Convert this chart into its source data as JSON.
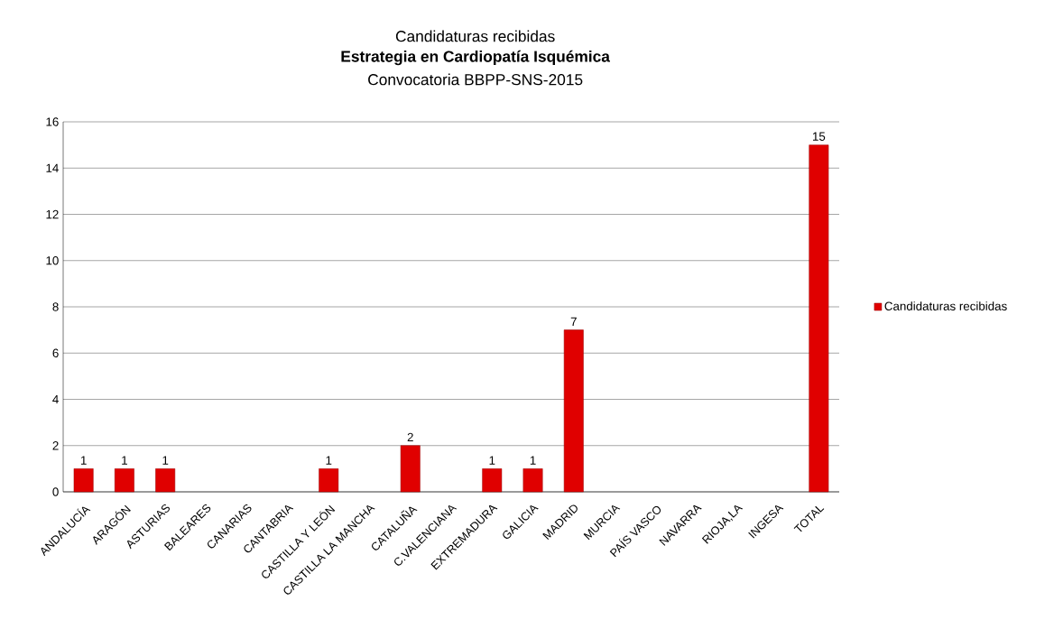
{
  "chart_data": {
    "type": "bar",
    "title": "Candidaturas recibidas",
    "subtitle": "**Estrategia en Cardiopatía Isquémica**",
    "annotations": [
      "Convocatoria BBPP-SNS-2015"
    ],
    "categories": [
      "ANDALUCÍA",
      "ARAGÓN",
      "ASTURIAS",
      "BALEARES",
      "CANARIAS",
      "CANTABRIA",
      "CASTILLA Y LEÓN",
      "CASTILLA LA MANCHA",
      "CATALUÑA",
      "C.VALENCIANA",
      "EXTREMADURA",
      "GALICIA",
      "MADRID",
      "MURCIA",
      "PAÍS VASCO",
      "NAVARRA",
      "RIOJA,LA",
      "INGESA",
      "TOTAL"
    ],
    "series": [
      {
        "name": "Candidaturas recibidas",
        "color": "#e00000",
        "values": [
          1,
          1,
          1,
          null,
          null,
          null,
          1,
          null,
          2,
          null,
          1,
          1,
          7,
          null,
          null,
          null,
          null,
          null,
          15
        ],
        "value_labels": [
          "1",
          "1",
          "1",
          null,
          null,
          null,
          "1",
          null,
          "2",
          null,
          "1",
          "1",
          "7",
          null,
          null,
          null,
          null,
          null,
          "15"
        ]
      }
    ],
    "ylim": [
      0,
      16
    ],
    "yticks": [
      0,
      2,
      4,
      6,
      8,
      10,
      12,
      14,
      16
    ],
    "grid": "y",
    "legend": "right"
  }
}
